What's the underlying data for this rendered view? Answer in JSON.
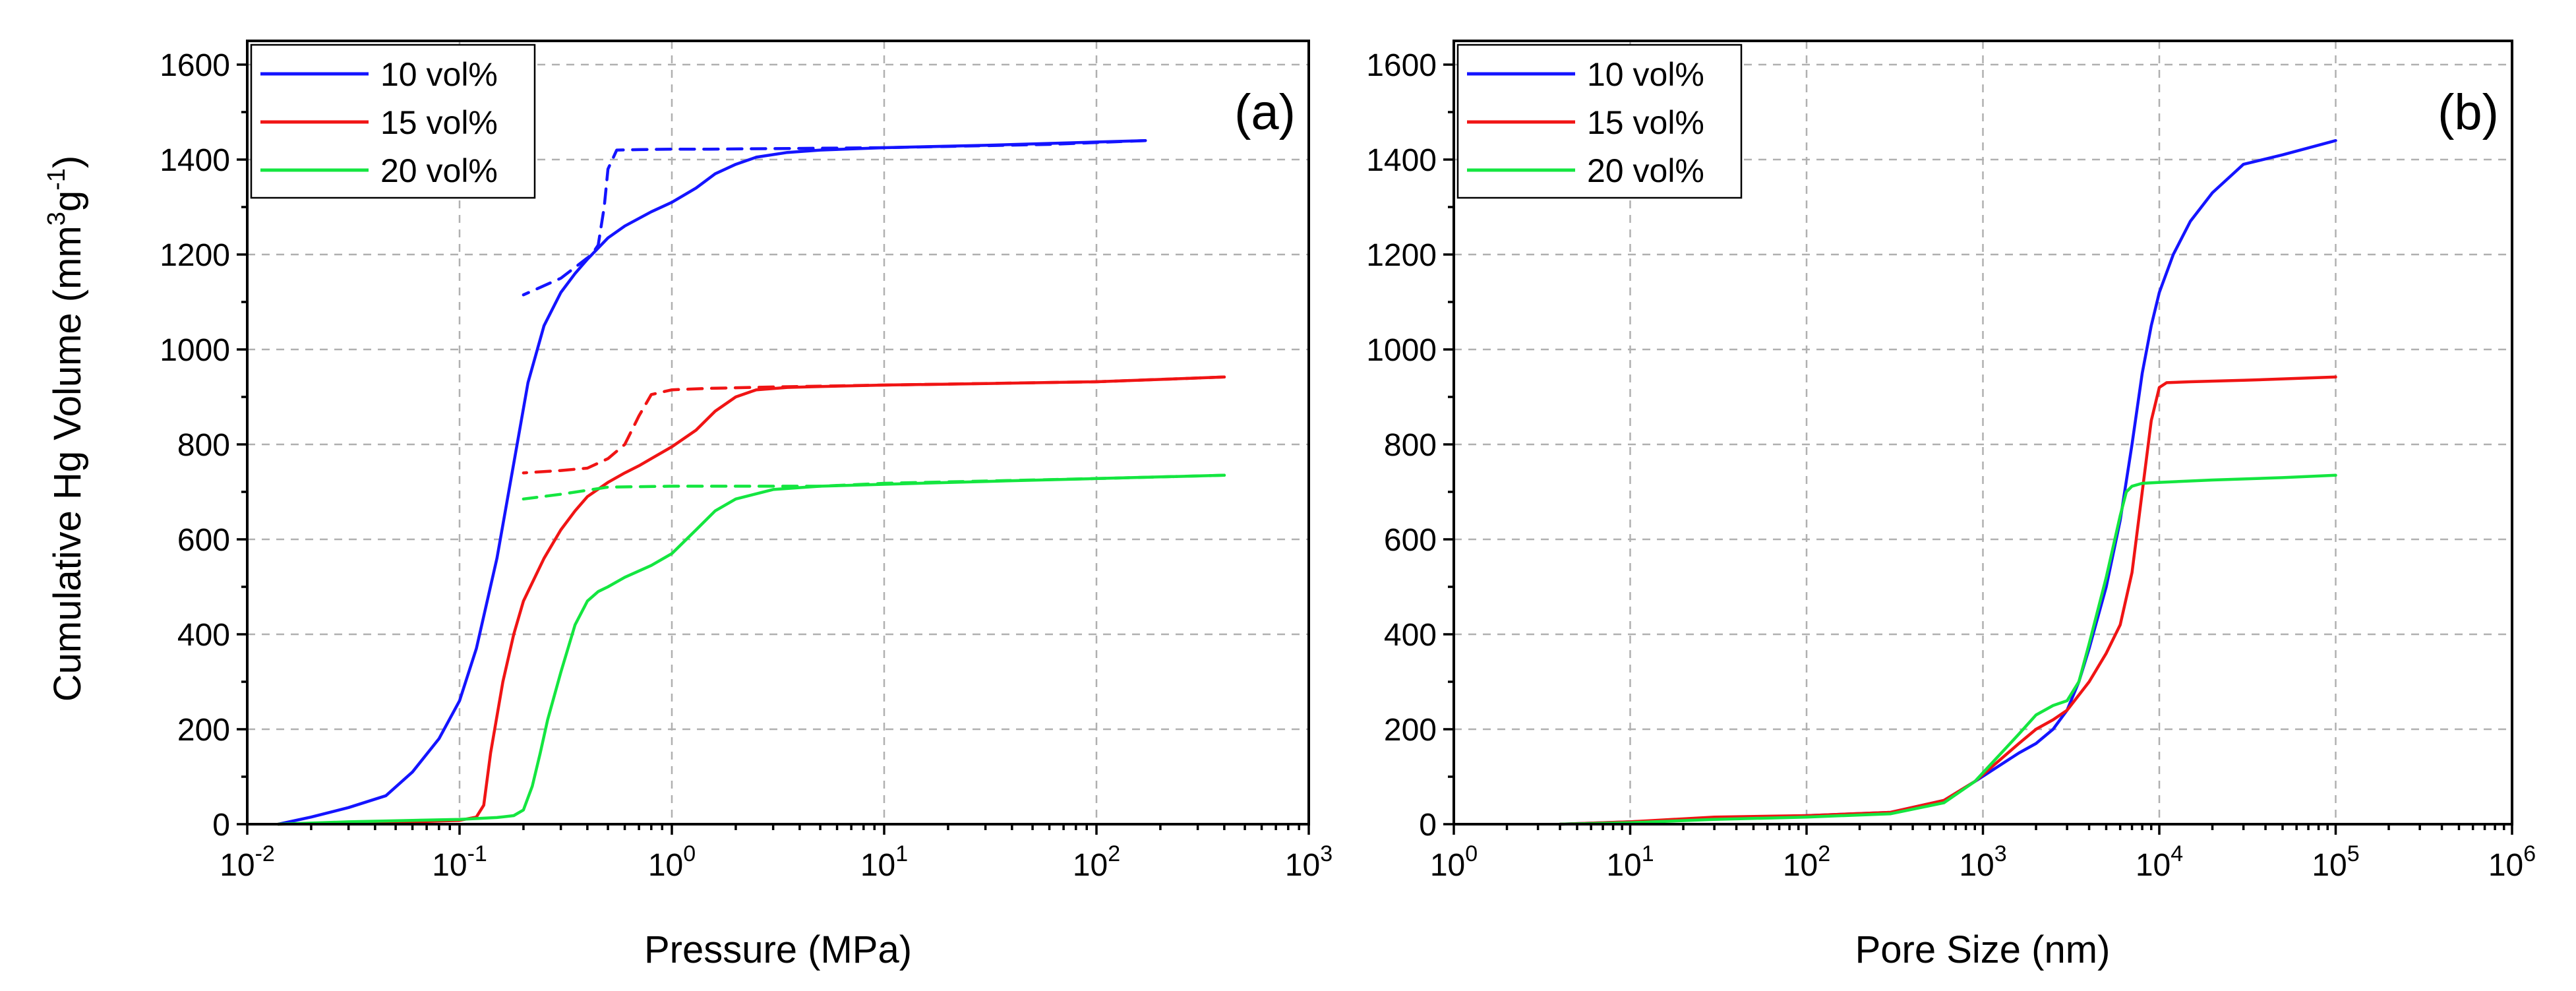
{
  "colors": {
    "10 vol%": "#1414ff",
    "15 vol%": "#f01414",
    "20 vol%": "#14e640"
  },
  "chart_data": [
    {
      "id": "a",
      "type": "line",
      "panel_label": "(a)",
      "xlabel": "Pressure (MPa)",
      "ylabel": {
        "main": "Cumulative Hg Volume (mm",
        "sup1": "3",
        "mid": "g",
        "sup2": "-1",
        "end": ")"
      },
      "xscale": "log",
      "xlim": [
        0.01,
        1000
      ],
      "ylim": [
        0,
        1650
      ],
      "xticks": [
        {
          "base": "10",
          "exp": "-2",
          "value": 0.01
        },
        {
          "base": "10",
          "exp": "-1",
          "value": 0.1
        },
        {
          "base": "10",
          "exp": "0",
          "value": 1
        },
        {
          "base": "10",
          "exp": "1",
          "value": 10
        },
        {
          "base": "10",
          "exp": "2",
          "value": 100
        },
        {
          "base": "10",
          "exp": "3",
          "value": 1000
        }
      ],
      "yticks": [
        "0",
        "200",
        "400",
        "600",
        "800",
        "1000",
        "1200",
        "1400",
        "1600"
      ],
      "legend": {
        "position": "top-left",
        "entries": [
          "10 vol%",
          "15 vol%",
          "20 vol%"
        ]
      },
      "series": [
        {
          "name": "10 vol%",
          "style": "solid",
          "x": [
            0.014,
            0.02,
            0.03,
            0.045,
            0.06,
            0.08,
            0.1,
            0.12,
            0.15,
            0.18,
            0.21,
            0.25,
            0.3,
            0.35,
            0.4,
            0.5,
            0.6,
            0.8,
            1.0,
            1.3,
            1.6,
            2.0,
            2.5,
            3.5,
            5,
            10,
            30,
            100,
            170
          ],
          "y": [
            0,
            15,
            35,
            60,
            110,
            180,
            260,
            370,
            560,
            760,
            930,
            1050,
            1120,
            1160,
            1190,
            1235,
            1260,
            1290,
            1310,
            1340,
            1370,
            1390,
            1405,
            1415,
            1420,
            1425,
            1430,
            1437,
            1440
          ]
        },
        {
          "name": "10 vol%",
          "style": "dashed",
          "x": [
            170,
            60,
            10,
            3,
            1.5,
            1.0,
            0.7,
            0.55,
            0.5,
            0.48,
            0.45,
            0.42,
            0.3,
            0.2
          ],
          "y": [
            1440,
            1432,
            1425,
            1423,
            1422,
            1422,
            1421,
            1420,
            1380,
            1300,
            1220,
            1200,
            1150,
            1115
          ]
        },
        {
          "name": "15 vol%",
          "style": "solid",
          "x": [
            0.014,
            0.03,
            0.06,
            0.1,
            0.12,
            0.13,
            0.14,
            0.16,
            0.18,
            0.2,
            0.25,
            0.3,
            0.35,
            0.4,
            0.5,
            0.6,
            0.7,
            0.8,
            1.0,
            1.3,
            1.6,
            2.0,
            2.5,
            3.5,
            5,
            10,
            30,
            100,
            400
          ],
          "y": [
            0,
            3,
            5,
            8,
            15,
            40,
            150,
            300,
            400,
            470,
            560,
            620,
            660,
            690,
            720,
            740,
            755,
            770,
            795,
            830,
            870,
            900,
            915,
            920,
            922,
            925,
            928,
            932,
            942
          ]
        },
        {
          "name": "15 vol%",
          "style": "dashed",
          "x": [
            400,
            100,
            10,
            3,
            1.5,
            1.0,
            0.8,
            0.7,
            0.6,
            0.5,
            0.4,
            0.3,
            0.2
          ],
          "y": [
            942,
            932,
            925,
            921,
            918,
            915,
            905,
            860,
            800,
            770,
            750,
            745,
            740
          ]
        },
        {
          "name": "20 vol%",
          "style": "solid",
          "x": [
            0.014,
            0.03,
            0.06,
            0.1,
            0.15,
            0.18,
            0.2,
            0.22,
            0.24,
            0.26,
            0.3,
            0.35,
            0.4,
            0.45,
            0.5,
            0.6,
            0.8,
            1.0,
            1.3,
            1.6,
            2.0,
            3.0,
            5,
            10,
            30,
            100,
            400
          ],
          "y": [
            0,
            5,
            8,
            10,
            14,
            18,
            30,
            80,
            150,
            220,
            320,
            420,
            470,
            490,
            500,
            520,
            545,
            570,
            620,
            660,
            685,
            705,
            712,
            716,
            722,
            728,
            735
          ]
        },
        {
          "name": "20 vol%",
          "style": "dashed",
          "x": [
            400,
            100,
            10,
            5,
            2,
            1,
            0.5,
            0.3,
            0.2
          ],
          "y": [
            735,
            728,
            718,
            712,
            712,
            712,
            710,
            695,
            685
          ]
        }
      ]
    },
    {
      "id": "b",
      "type": "line",
      "panel_label": "(b)",
      "xlabel": "Pore Size (nm)",
      "xscale": "log",
      "xlim": [
        1,
        1000000
      ],
      "ylim": [
        0,
        1650
      ],
      "xticks": [
        {
          "base": "10",
          "exp": "0",
          "value": 1
        },
        {
          "base": "10",
          "exp": "1",
          "value": 10
        },
        {
          "base": "10",
          "exp": "2",
          "value": 100
        },
        {
          "base": "10",
          "exp": "3",
          "value": 1000
        },
        {
          "base": "10",
          "exp": "4",
          "value": 10000
        },
        {
          "base": "10",
          "exp": "5",
          "value": 100000
        },
        {
          "base": "10",
          "exp": "6",
          "value": 1000000
        }
      ],
      "yticks": [
        "0",
        "200",
        "400",
        "600",
        "800",
        "1000",
        "1200",
        "1400",
        "1600"
      ],
      "legend": {
        "position": "top-left",
        "entries": [
          "10 vol%",
          "15 vol%",
          "20 vol%"
        ]
      },
      "series": [
        {
          "name": "10 vol%",
          "style": "solid",
          "x": [
            4,
            10,
            30,
            100,
            300,
            600,
            900,
            1200,
            1600,
            2000,
            2500,
            3000,
            3500,
            4000,
            5000,
            6000,
            7000,
            8000,
            9000,
            10000,
            12000,
            15000,
            20000,
            30000,
            50000,
            100000
          ],
          "y": [
            0,
            5,
            12,
            18,
            25,
            50,
            90,
            120,
            150,
            170,
            200,
            240,
            300,
            370,
            500,
            640,
            800,
            950,
            1050,
            1120,
            1200,
            1270,
            1330,
            1390,
            1410,
            1440
          ]
        },
        {
          "name": "15 vol%",
          "style": "solid",
          "x": [
            4,
            10,
            30,
            100,
            300,
            600,
            900,
            1200,
            1600,
            2000,
            2500,
            3000,
            4000,
            5000,
            6000,
            7000,
            8000,
            9000,
            10000,
            11000,
            15000,
            30000,
            100000
          ],
          "y": [
            0,
            5,
            15,
            18,
            25,
            50,
            90,
            130,
            170,
            200,
            220,
            240,
            300,
            360,
            420,
            530,
            700,
            850,
            920,
            930,
            932,
            935,
            942
          ]
        },
        {
          "name": "20 vol%",
          "style": "solid",
          "x": [
            4,
            10,
            30,
            100,
            300,
            600,
            900,
            1200,
            1600,
            2000,
            2500,
            3000,
            3500,
            4000,
            5000,
            6000,
            6500,
            7000,
            8000,
            10000,
            20000,
            50000,
            100000
          ],
          "y": [
            0,
            3,
            10,
            15,
            22,
            45,
            90,
            140,
            190,
            230,
            250,
            260,
            300,
            380,
            520,
            650,
            700,
            712,
            718,
            720,
            725,
            730,
            735
          ]
        }
      ]
    }
  ]
}
